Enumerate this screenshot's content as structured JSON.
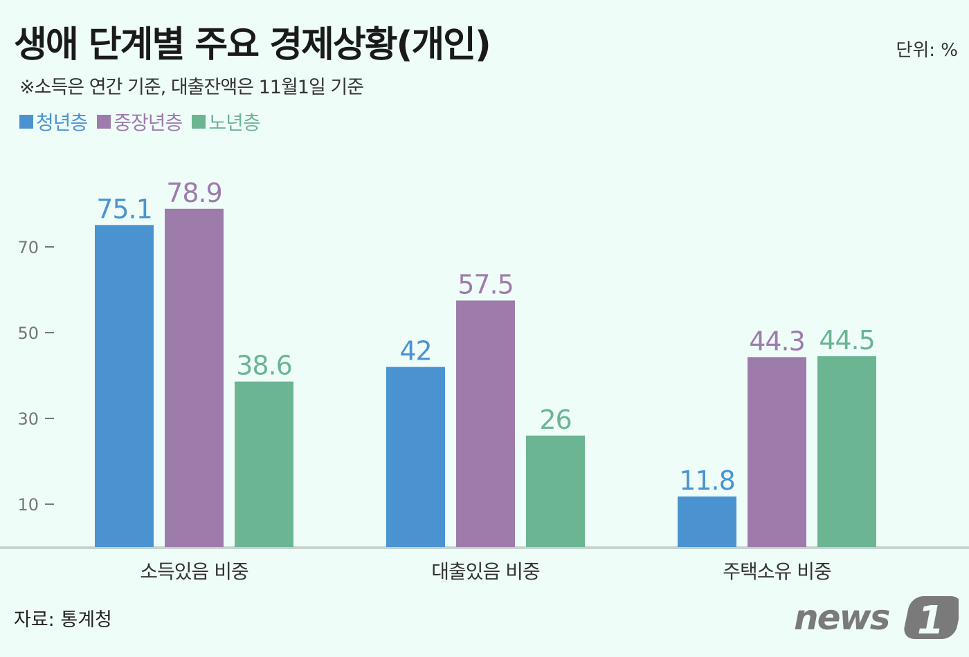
{
  "title": "생애 단계별 주요 경제상황(개인)",
  "unit": "단위: %",
  "subtitle": "※소득은 연간 기준, 대출잔액은 11월1일 기준",
  "source": "자료: 통계청",
  "logo": "news1",
  "colors": {
    "청년층": "#4a93d0",
    "중장년층": "#9d7cab",
    "노년층": "#6bb592"
  },
  "chart_data": {
    "type": "bar",
    "title": "생애 단계별 주요 경제상황(개인)",
    "categories": [
      "소득있음 비중",
      "대출있음 비중",
      "주택소유 비중"
    ],
    "series": [
      {
        "name": "청년층",
        "values": [
          75.1,
          42,
          11.8
        ]
      },
      {
        "name": "중장년층",
        "values": [
          78.9,
          57.5,
          44.3
        ]
      },
      {
        "name": "노년층",
        "values": [
          38.6,
          26,
          44.5
        ]
      }
    ],
    "yticks": [
      10,
      30,
      50,
      70
    ],
    "ylim": [
      0,
      90
    ],
    "legend": "top-left",
    "grid": false
  }
}
